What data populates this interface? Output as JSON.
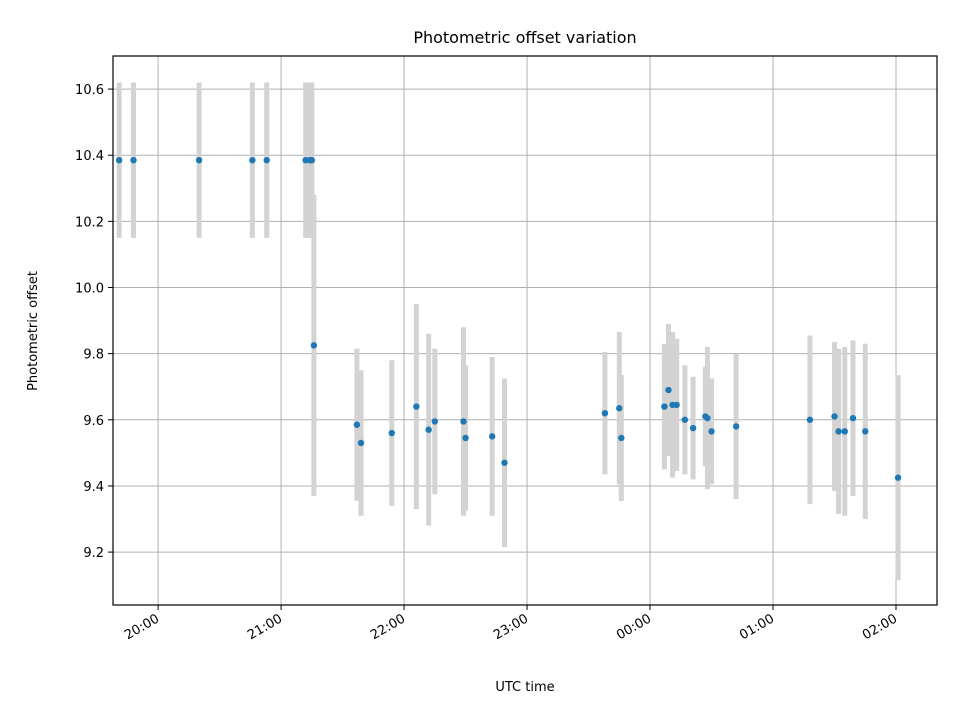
{
  "chart_data": {
    "type": "scatter",
    "title": "Photometric offset variation",
    "xlabel": "UTC time",
    "ylabel": "Photometric offset",
    "x_axis": {
      "type": "time",
      "range": [
        "19:38",
        "02:20 (+1 day)"
      ],
      "tick_labels": [
        "20:00",
        "21:00",
        "22:00",
        "23:00",
        "00:00",
        "01:00",
        "02:00"
      ]
    },
    "y_axis": {
      "range": [
        9.04,
        10.7
      ],
      "ticks": [
        9.2,
        9.4,
        9.6,
        9.8,
        10.0,
        10.2,
        10.4,
        10.6
      ],
      "tick_labels": [
        "9.2",
        "9.4",
        "9.6",
        "9.8",
        "10.0",
        "10.2",
        "10.4",
        "10.6"
      ]
    },
    "grid": true,
    "colors": {
      "points": "#1f77b4",
      "errorbars": "#d3d3d3",
      "grid": "#b0b0b0"
    },
    "points": [
      {
        "t": "19:41",
        "y": 10.385,
        "err": 0.235
      },
      {
        "t": "19:48",
        "y": 10.385,
        "err": 0.235
      },
      {
        "t": "20:20",
        "y": 10.385,
        "err": 0.235
      },
      {
        "t": "20:46",
        "y": 10.385,
        "err": 0.235
      },
      {
        "t": "20:53",
        "y": 10.385,
        "err": 0.235
      },
      {
        "t": "21:12",
        "y": 10.385,
        "err": 0.235
      },
      {
        "t": "21:14",
        "y": 10.385,
        "err": 0.235
      },
      {
        "t": "21:15",
        "y": 10.385,
        "err": 0.235
      },
      {
        "t": "21:16",
        "y": 9.825,
        "err": 0.455
      },
      {
        "t": "21:37",
        "y": 9.585,
        "err": 0.23
      },
      {
        "t": "21:39",
        "y": 9.53,
        "err": 0.22
      },
      {
        "t": "21:54",
        "y": 9.56,
        "err": 0.22
      },
      {
        "t": "22:06",
        "y": 9.64,
        "err": 0.31
      },
      {
        "t": "22:12",
        "y": 9.57,
        "err": 0.29
      },
      {
        "t": "22:15",
        "y": 9.595,
        "err": 0.22
      },
      {
        "t": "22:29",
        "y": 9.595,
        "err": 0.285
      },
      {
        "t": "22:30",
        "y": 9.545,
        "err": 0.22
      },
      {
        "t": "22:43",
        "y": 9.55,
        "err": 0.24
      },
      {
        "t": "22:49",
        "y": 9.47,
        "err": 0.255
      },
      {
        "t": "23:38",
        "y": 9.62,
        "err": 0.185
      },
      {
        "t": "23:45",
        "y": 9.635,
        "err": 0.23
      },
      {
        "t": "23:46",
        "y": 9.545,
        "err": 0.19
      },
      {
        "t": "00:07",
        "y": 9.64,
        "err": 0.19
      },
      {
        "t": "00:09",
        "y": 9.69,
        "err": 0.2
      },
      {
        "t": "00:11",
        "y": 9.645,
        "err": 0.22
      },
      {
        "t": "00:13",
        "y": 9.645,
        "err": 0.2
      },
      {
        "t": "00:17",
        "y": 9.6,
        "err": 0.165
      },
      {
        "t": "00:21",
        "y": 9.575,
        "err": 0.155
      },
      {
        "t": "00:27",
        "y": 9.61,
        "err": 0.15
      },
      {
        "t": "00:28",
        "y": 9.605,
        "err": 0.215
      },
      {
        "t": "00:30",
        "y": 9.565,
        "err": 0.16
      },
      {
        "t": "00:42",
        "y": 9.58,
        "err": 0.22
      },
      {
        "t": "01:18",
        "y": 9.6,
        "err": 0.255
      },
      {
        "t": "01:30",
        "y": 9.61,
        "err": 0.225
      },
      {
        "t": "01:32",
        "y": 9.565,
        "err": 0.25
      },
      {
        "t": "01:35",
        "y": 9.565,
        "err": 0.255
      },
      {
        "t": "01:39",
        "y": 9.605,
        "err": 0.235
      },
      {
        "t": "01:45",
        "y": 9.565,
        "err": 0.265
      },
      {
        "t": "02:01",
        "y": 9.425,
        "err": 0.31
      }
    ]
  }
}
